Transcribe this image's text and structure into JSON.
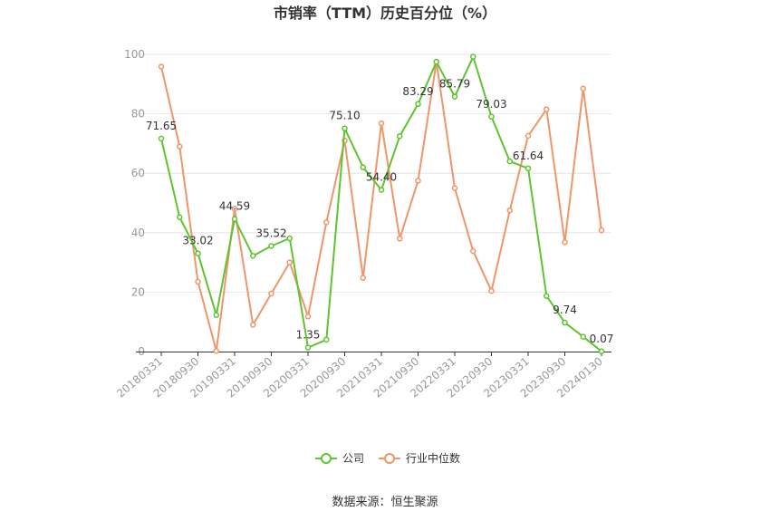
{
  "chart_data": {
    "type": "line",
    "title": "市销率（TTM）历史百分位（%）",
    "source": "数据来源：恒生聚源",
    "ylim": [
      0,
      100
    ],
    "yticks": [
      0,
      20,
      40,
      60,
      80,
      100
    ],
    "grid": true,
    "legend_position": "bottom",
    "x_tick_labels": [
      "20180331",
      "20180930",
      "20190331",
      "20190930",
      "20200331",
      "20200930",
      "20210331",
      "20210930",
      "20220331",
      "20220930",
      "20230331",
      "20230930",
      "20240130"
    ],
    "x": [
      "20180331",
      "20180630",
      "20180930",
      "20181231",
      "20190331",
      "20190630",
      "20190930",
      "20191231",
      "20200331",
      "20200630",
      "20200930",
      "20201231",
      "20210331",
      "20210630",
      "20210930",
      "20211231",
      "20220331",
      "20220630",
      "20220930",
      "20221231",
      "20230331",
      "20230630",
      "20230930",
      "20231231",
      "20240130"
    ],
    "series": [
      {
        "name": "公司",
        "color": "#5ec42f",
        "values": [
          71.65,
          45.2,
          33.02,
          12.3,
          44.59,
          32.2,
          35.52,
          38.1,
          1.35,
          4.0,
          75.1,
          62.0,
          54.4,
          72.5,
          83.29,
          97.5,
          85.79,
          99.2,
          79.03,
          64.0,
          61.64,
          18.7,
          9.74,
          5.0,
          0.07
        ]
      },
      {
        "name": "行业中位数",
        "color": "#f0956a",
        "values": [
          95.9,
          69.0,
          23.5,
          0.2,
          48.0,
          9.0,
          19.5,
          30.0,
          11.8,
          43.5,
          71.0,
          24.8,
          76.8,
          38.0,
          57.5,
          97.5,
          55.0,
          33.8,
          20.4,
          47.5,
          72.6,
          81.5,
          36.8,
          88.5,
          40.8
        ]
      }
    ],
    "data_labels": [
      {
        "index": 0,
        "text": "71.65"
      },
      {
        "index": 2,
        "text": "33.02"
      },
      {
        "index": 4,
        "text": "44.59"
      },
      {
        "index": 6,
        "text": "35.52"
      },
      {
        "index": 8,
        "text": "1.35"
      },
      {
        "index": 10,
        "text": "75.10"
      },
      {
        "index": 12,
        "text": "54.40"
      },
      {
        "index": 14,
        "text": "83.29"
      },
      {
        "index": 16,
        "text": "85.79"
      },
      {
        "index": 18,
        "text": "79.03"
      },
      {
        "index": 20,
        "text": "61.64"
      },
      {
        "index": 22,
        "text": "9.74"
      },
      {
        "index": 24,
        "text": "0.07"
      }
    ]
  }
}
